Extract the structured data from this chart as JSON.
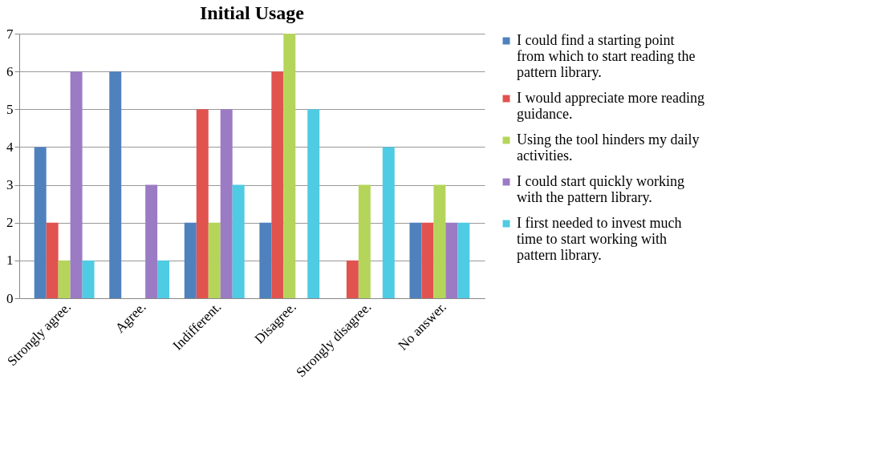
{
  "chart_data": {
    "type": "bar",
    "title": "Initial Usage",
    "categories": [
      "Strongly agree.",
      "Agree.",
      "Indifferent.",
      "Disagree.",
      "Strongly disagree.",
      "No answer."
    ],
    "series": [
      {
        "name": "I could find a starting point from which to start reading the pattern library.",
        "color": "#4f81bd",
        "values": [
          4,
          6,
          2,
          2,
          0,
          2
        ]
      },
      {
        "name": "I would appreciate more reading guidance.",
        "color": "#e0534f",
        "values": [
          2,
          0,
          5,
          6,
          1,
          2
        ]
      },
      {
        "name": "Using the tool hinders my daily activities.",
        "color": "#b5d55a",
        "values": [
          1,
          0,
          2,
          7,
          3,
          3
        ]
      },
      {
        "name": "I could start quickly working with the pattern library.",
        "color": "#9b7bc4",
        "values": [
          6,
          3,
          5,
          0,
          0,
          2
        ]
      },
      {
        "name": "I first needed to invest much time to start working with pattern library.",
        "color": "#4fcbe3",
        "values": [
          1,
          1,
          3,
          5,
          4,
          2
        ]
      }
    ],
    "ylim": [
      0,
      7
    ],
    "yticks": [
      0,
      1,
      2,
      3,
      4,
      5,
      6,
      7
    ],
    "grid": "y",
    "legend": "right"
  }
}
